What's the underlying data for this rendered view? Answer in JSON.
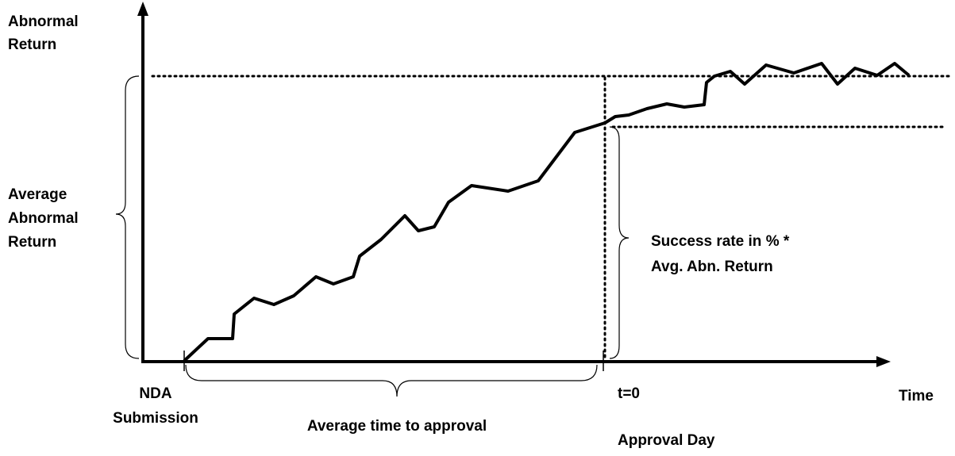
{
  "y_axis_label": [
    "Abnormal",
    "Return"
  ],
  "left_brace_label": [
    "Average",
    "Abnormal",
    "Return"
  ],
  "right_brace_label": [
    "Success rate in % *",
    "Avg. Abn. Return"
  ],
  "start_label": [
    "NDA",
    "Submission"
  ],
  "bottom_brace_label": "Average time to approval",
  "event_label": [
    "t=0",
    "Approval Day"
  ],
  "x_axis_label": "Time"
}
